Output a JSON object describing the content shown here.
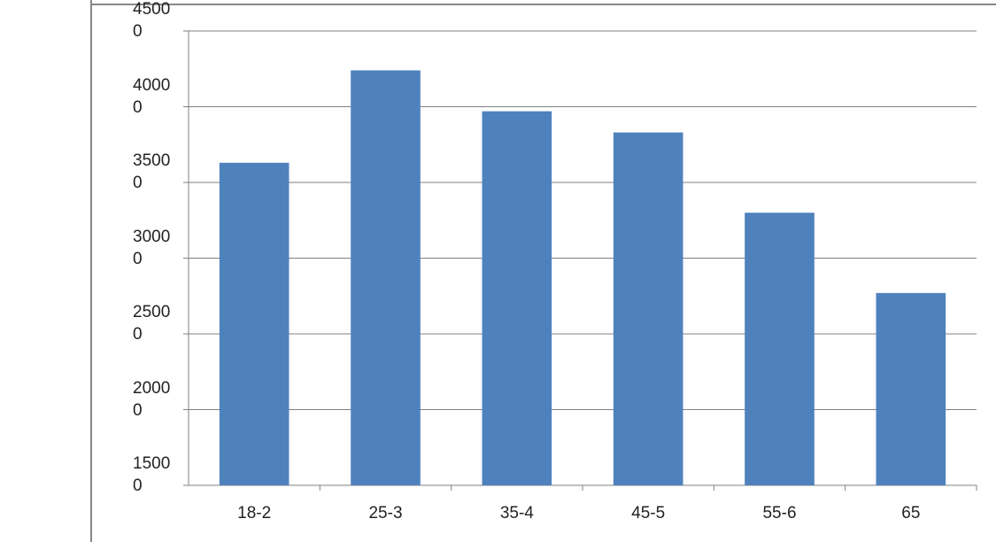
{
  "chart_data": {
    "type": "bar",
    "categories": [
      "18-2",
      "25-3",
      "35-4",
      "45-5",
      "55-6",
      "65"
    ],
    "values": [
      36300,
      42400,
      39700,
      38300,
      33000,
      27700
    ],
    "color": "#4f81bd",
    "ylim": [
      15000,
      45000
    ],
    "yticks": [
      15000,
      20000,
      25000,
      30000,
      35000,
      40000,
      45000
    ],
    "grid": true
  }
}
